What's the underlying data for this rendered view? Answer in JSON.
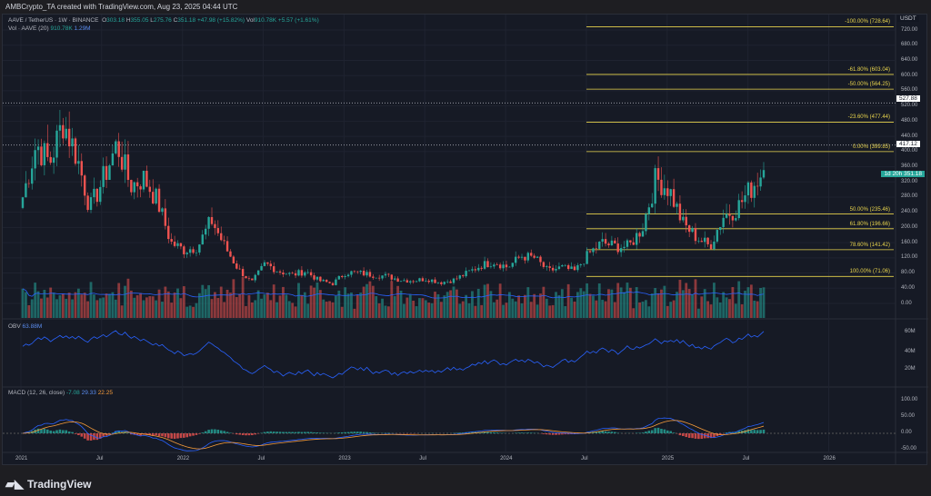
{
  "header": {
    "attribution": "AMBCrypto_TA created with TradingView.com, Aug 23, 2025 04:44 UTC"
  },
  "legend": {
    "symbol": "AAVE / TetherUS · 1W · BINANCE",
    "o_label": "O",
    "o": "303.18",
    "h_label": "H",
    "h": "355.05",
    "l_label": "L",
    "l": "275.76",
    "c_label": "C",
    "c": "351.18",
    "change": "+47.98 (+15.82%)",
    "vol_label": "Vol",
    "vol": "910.78K",
    "vol_change": "+5.57 (+1.61%)",
    "vol_ind": "Vol · AAVE (20)",
    "vol_ind_v1": "910.78K",
    "vol_ind_v2": "1.29M",
    "obv": "OBV",
    "obv_v": "63.88M",
    "macd": "MACD (12, 26, close)",
    "macd_v1": "-7.08",
    "macd_v2": "29.33",
    "macd_v3": "22.25"
  },
  "price_axis": {
    "currency": "USDT",
    "ticks": [
      "720.00",
      "680.00",
      "640.00",
      "600.00",
      "560.00",
      "520.00",
      "480.00",
      "440.00",
      "400.00",
      "360.00",
      "320.00",
      "280.00",
      "240.00",
      "200.00",
      "160.00",
      "120.00",
      "80.00",
      "40.00",
      "0.00"
    ]
  },
  "obv_axis": {
    "ticks": [
      "60M",
      "40M",
      "20M"
    ]
  },
  "macd_axis": {
    "ticks": [
      "100.00",
      "50.00",
      "0.00",
      "-50.00"
    ]
  },
  "time_axis": {
    "ticks": [
      "2021",
      "Jul",
      "2022",
      "Jul",
      "2023",
      "Jul",
      "2024",
      "Jul",
      "2025",
      "Jul",
      "2026"
    ]
  },
  "price_tags": {
    "current": "351.18",
    "countdown": "1d 20h",
    "line1": "527.88",
    "line2": "417.12"
  },
  "fib_levels": [
    {
      "label": "-100.00% (728.64)",
      "price": 728.64
    },
    {
      "label": "-61.80% (603.04)",
      "price": 603.04
    },
    {
      "label": "-50.00% (564.25)",
      "price": 564.25
    },
    {
      "label": "-23.60% (477.44)",
      "price": 477.44
    },
    {
      "label": "0.00% (399.85)",
      "price": 399.85
    },
    {
      "label": "50.00% (235.46)",
      "price": 235.46
    },
    {
      "label": "61.80% (196.66)",
      "price": 196.66
    },
    {
      "label": "78.60% (141.42)",
      "price": 141.42
    },
    {
      "label": "100.00% (71.06)",
      "price": 71.06
    }
  ],
  "colors": {
    "up": "#26a69a",
    "down": "#ef5350",
    "fib": "#e8d44d",
    "obv": "#2962ff",
    "macd": "#2962ff",
    "signal": "#f59b3b",
    "background": "#161a25"
  },
  "chart_data": {
    "type": "candlestick",
    "interval": "1W",
    "approx_monthly_close_from": "2021-01",
    "approx_monthly_close": [
      280,
      420,
      370,
      480,
      390,
      250,
      330,
      420,
      310,
      330,
      270,
      160,
      140,
      150,
      220,
      150,
      90,
      55,
      105,
      85,
      75,
      85,
      60,
      52,
      82,
      80,
      75,
      72,
      62,
      60,
      65,
      55,
      62,
      80,
      100,
      110,
      95,
      125,
      120,
      85,
      95,
      85,
      130,
      160,
      150,
      150,
      200,
      330,
      300,
      210,
      175,
      150,
      230,
      250,
      300,
      351.18
    ],
    "ylim": [
      0,
      740
    ]
  },
  "footer": {
    "brand": "TradingView"
  }
}
